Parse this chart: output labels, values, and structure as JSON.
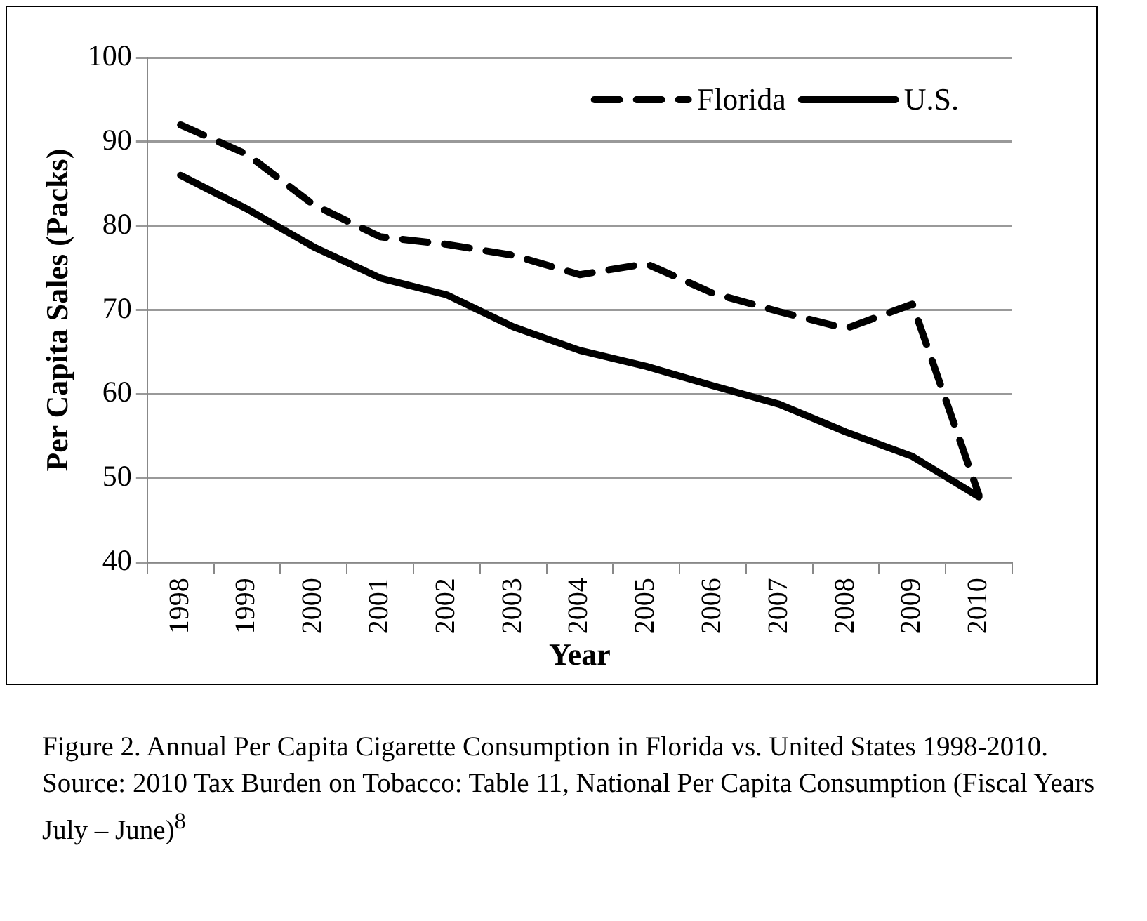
{
  "chart_data": {
    "type": "line",
    "xlabel": "Year",
    "ylabel": "Per Capita Sales (Packs)",
    "categories": [
      "1998",
      "1999",
      "2000",
      "2001",
      "2002",
      "2003",
      "2004",
      "2005",
      "2006",
      "2007",
      "2008",
      "2009",
      "2010"
    ],
    "series": [
      {
        "name": "Florida",
        "color": "#000000",
        "line_style": "dashed",
        "values": [
          92,
          88.5,
          82.5,
          78.7,
          77.8,
          76.5,
          74.2,
          75.5,
          72,
          69.8,
          67.8,
          70.7,
          48
        ]
      },
      {
        "name": "U.S.",
        "color": "#000000",
        "line_style": "solid",
        "values": [
          86,
          82,
          77.5,
          73.8,
          71.8,
          68,
          65.2,
          63.3,
          61,
          58.8,
          55.5,
          52.6,
          47.8
        ]
      }
    ],
    "ylim": [
      40,
      100
    ],
    "yticks": [
      40,
      50,
      60,
      70,
      80,
      90,
      100
    ],
    "grid": "y",
    "legend": "top right",
    "marker": "none",
    "annotations": [
      "Figure 2. Annual Per Capita Cigarette Consumption in Florida vs. United States 1998-2010. Source:  2010 Tax Burden on Tobacco: Table 11, National Per Capita Consumption (Fiscal Years  July – June)$^{8}$"
    ]
  }
}
